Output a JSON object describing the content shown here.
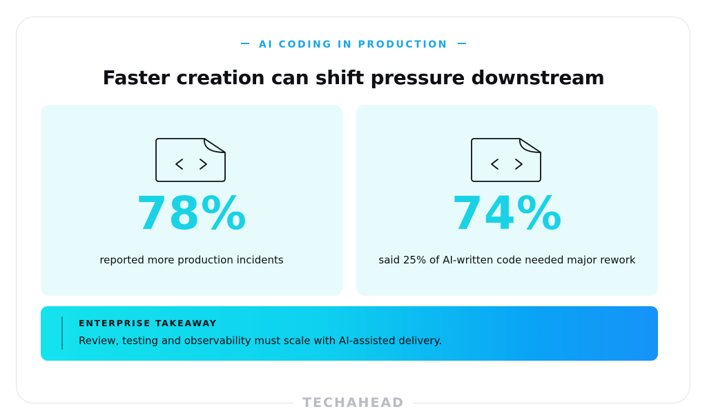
{
  "header": {
    "eyebrow": "AI CODING IN PRODUCTION",
    "title": "Faster creation can shift pressure downstream"
  },
  "stats": [
    {
      "icon": "code-file-icon",
      "value": "78%",
      "caption": "reported more production incidents"
    },
    {
      "icon": "code-file-icon",
      "value": "74%",
      "caption": "said 25% of AI-written code needed major rework"
    }
  ],
  "takeaway": {
    "label": "ENTERPRISE TAKEAWAY",
    "text": "Review, testing and observability must scale with AI-assisted delivery."
  },
  "footer": {
    "brand": "TECHAHEAD"
  },
  "colors": {
    "accent": "#19d2e6",
    "eyebrow": "#1aa6e6",
    "card_bg": "#e7fbfd",
    "gradient_start": "#14e3ee",
    "gradient_end": "#1693f8"
  }
}
